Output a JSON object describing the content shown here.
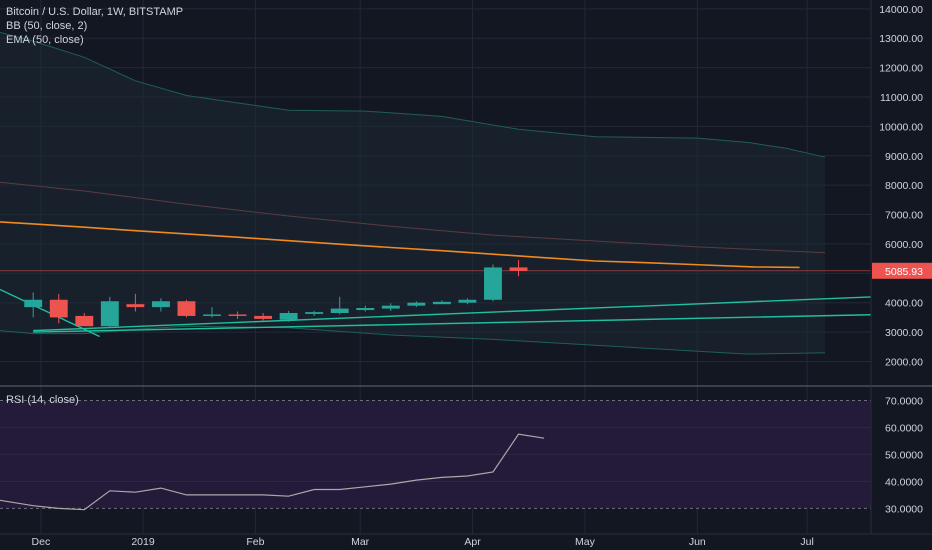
{
  "legend": {
    "title": "Bitcoin / U.S. Dollar, 1W, BITSTAMP",
    "bb": "BB (50, close, 2)",
    "ema": "EMA (50, close)",
    "rsi": "RSI (14, close)"
  },
  "colors": {
    "background": "#131722",
    "grid": "#232838",
    "up": "#26a69a",
    "down": "#ef5350",
    "ema": "#f0891f",
    "bb_band": "#1f5e54",
    "bb_basis": "#5a3b40",
    "trendline": "#1fbfa0",
    "rsi_line": "#a9a9a9",
    "rsi_fill": "#241b3a",
    "price_tag": "#ef5350",
    "axis_text": "#d1d4dc"
  },
  "chart_data": [
    {
      "type": "candlestick",
      "x_labels": [
        {
          "label": "Dec",
          "week": 0.3
        },
        {
          "label": "2019",
          "week": 4.3
        },
        {
          "label": "Feb",
          "week": 8.7
        },
        {
          "label": "Mar",
          "week": 12.8
        },
        {
          "label": "Apr",
          "week": 17.2
        },
        {
          "label": "May",
          "week": 21.6
        },
        {
          "label": "Jun",
          "week": 26.0
        },
        {
          "label": "Jul",
          "week": 30.3
        }
      ],
      "y_ticks": [
        2000,
        3000,
        4000,
        5000,
        6000,
        7000,
        8000,
        9000,
        10000,
        11000,
        12000,
        13000,
        14000
      ],
      "y_tick_labels": [
        "2000.00",
        "3000.00",
        "4000.00",
        "5000.00",
        "6000.00",
        "7000.00",
        "8000.00",
        "9000.00",
        "10000.00",
        "11000.00",
        "12000.00",
        "13000.00",
        "14000.00"
      ],
      "ylim": [
        1200,
        14300
      ],
      "xlim": [
        -1.3,
        32.8
      ],
      "last_price": 5085.93,
      "last_price_label": "5085.93",
      "candles": [
        {
          "o": 3850,
          "h": 4350,
          "l": 3500,
          "c": 4100
        },
        {
          "o": 4100,
          "h": 4300,
          "l": 3300,
          "c": 3500
        },
        {
          "o": 3550,
          "h": 3650,
          "l": 3200,
          "c": 3200
        },
        {
          "o": 3200,
          "h": 4200,
          "l": 3150,
          "c": 4050
        },
        {
          "o": 3950,
          "h": 4300,
          "l": 3700,
          "c": 3850
        },
        {
          "o": 3850,
          "h": 4150,
          "l": 3700,
          "c": 4050
        },
        {
          "o": 4050,
          "h": 4100,
          "l": 3500,
          "c": 3550
        },
        {
          "o": 3550,
          "h": 3850,
          "l": 3500,
          "c": 3600
        },
        {
          "o": 3600,
          "h": 3700,
          "l": 3450,
          "c": 3550
        },
        {
          "o": 3550,
          "h": 3650,
          "l": 3400,
          "c": 3450
        },
        {
          "o": 3420,
          "h": 3720,
          "l": 3350,
          "c": 3650
        },
        {
          "o": 3620,
          "h": 3720,
          "l": 3550,
          "c": 3680
        },
        {
          "o": 3650,
          "h": 4200,
          "l": 3600,
          "c": 3800
        },
        {
          "o": 3750,
          "h": 3900,
          "l": 3700,
          "c": 3820
        },
        {
          "o": 3800,
          "h": 3980,
          "l": 3720,
          "c": 3900
        },
        {
          "o": 3900,
          "h": 4050,
          "l": 3850,
          "c": 4000
        },
        {
          "o": 3950,
          "h": 4080,
          "l": 3950,
          "c": 4030
        },
        {
          "o": 4000,
          "h": 4150,
          "l": 3950,
          "c": 4100
        },
        {
          "o": 4100,
          "h": 5300,
          "l": 4050,
          "c": 5200
        },
        {
          "o": 5200,
          "h": 5450,
          "l": 4900,
          "c": 5086
        }
      ],
      "ema_50": [
        [
          -1.3,
          6750
        ],
        [
          0,
          6680
        ],
        [
          2,
          6570
        ],
        [
          4,
          6450
        ],
        [
          6,
          6340
        ],
        [
          8,
          6230
        ],
        [
          10,
          6110
        ],
        [
          12,
          5990
        ],
        [
          14,
          5880
        ],
        [
          16,
          5770
        ],
        [
          18,
          5650
        ],
        [
          20,
          5530
        ],
        [
          22,
          5420
        ],
        [
          24,
          5360
        ],
        [
          25.8,
          5300
        ],
        [
          28.2,
          5220
        ],
        [
          30,
          5200
        ]
      ],
      "bb_upper": [
        [
          -1.3,
          13200
        ],
        [
          0,
          12900
        ],
        [
          2,
          12350
        ],
        [
          4,
          11550
        ],
        [
          6,
          11050
        ],
        [
          8,
          10800
        ],
        [
          10,
          10550
        ],
        [
          13,
          10520
        ],
        [
          16,
          10340
        ],
        [
          19,
          9900
        ],
        [
          22,
          9650
        ],
        [
          26,
          9600
        ],
        [
          28,
          9450
        ],
        [
          29.5,
          9250
        ],
        [
          31,
          8950
        ]
      ],
      "bb_basis": [
        [
          -1.3,
          8100
        ],
        [
          2,
          7800
        ],
        [
          6,
          7350
        ],
        [
          10,
          6950
        ],
        [
          14,
          6600
        ],
        [
          18,
          6300
        ],
        [
          22,
          6100
        ],
        [
          26,
          5900
        ],
        [
          31,
          5700
        ]
      ],
      "bb_lower": [
        [
          -1.3,
          3050
        ],
        [
          0,
          2950
        ],
        [
          2,
          2950
        ],
        [
          4,
          3100
        ],
        [
          6,
          3200
        ],
        [
          10,
          3150
        ],
        [
          14,
          2900
        ],
        [
          18,
          2750
        ],
        [
          22,
          2550
        ],
        [
          26,
          2350
        ],
        [
          28,
          2250
        ],
        [
          30,
          2280
        ],
        [
          31,
          2300
        ]
      ],
      "trendlines": [
        [
          [
            -1.3,
            4450
          ],
          [
            2.6,
            2850
          ]
        ],
        [
          [
            0,
            3050
          ],
          [
            40,
            4450
          ]
        ],
        [
          [
            0,
            3000
          ],
          [
            50,
            3900
          ]
        ]
      ]
    },
    {
      "type": "line",
      "name": "RSI (14, close)",
      "y_ticks": [
        30,
        40,
        50,
        60,
        70
      ],
      "y_tick_labels": [
        "30.0000",
        "40.0000",
        "50.0000",
        "60.0000",
        "70.0000"
      ],
      "ylim": [
        20.5,
        75
      ],
      "band": [
        30,
        70
      ],
      "points": [
        [
          -1.3,
          33
        ],
        [
          0,
          31
        ],
        [
          1,
          30
        ],
        [
          2,
          29.5
        ],
        [
          3,
          36.5
        ],
        [
          4,
          36
        ],
        [
          5,
          37.5
        ],
        [
          6,
          35
        ],
        [
          7,
          35
        ],
        [
          8,
          35
        ],
        [
          9,
          35
        ],
        [
          10,
          34.5
        ],
        [
          11,
          37
        ],
        [
          12,
          37
        ],
        [
          13,
          38
        ],
        [
          14,
          39
        ],
        [
          15,
          40.5
        ],
        [
          16,
          41.5
        ],
        [
          17,
          42
        ],
        [
          18,
          43.5
        ],
        [
          19,
          57.5
        ],
        [
          20,
          56
        ]
      ]
    }
  ]
}
